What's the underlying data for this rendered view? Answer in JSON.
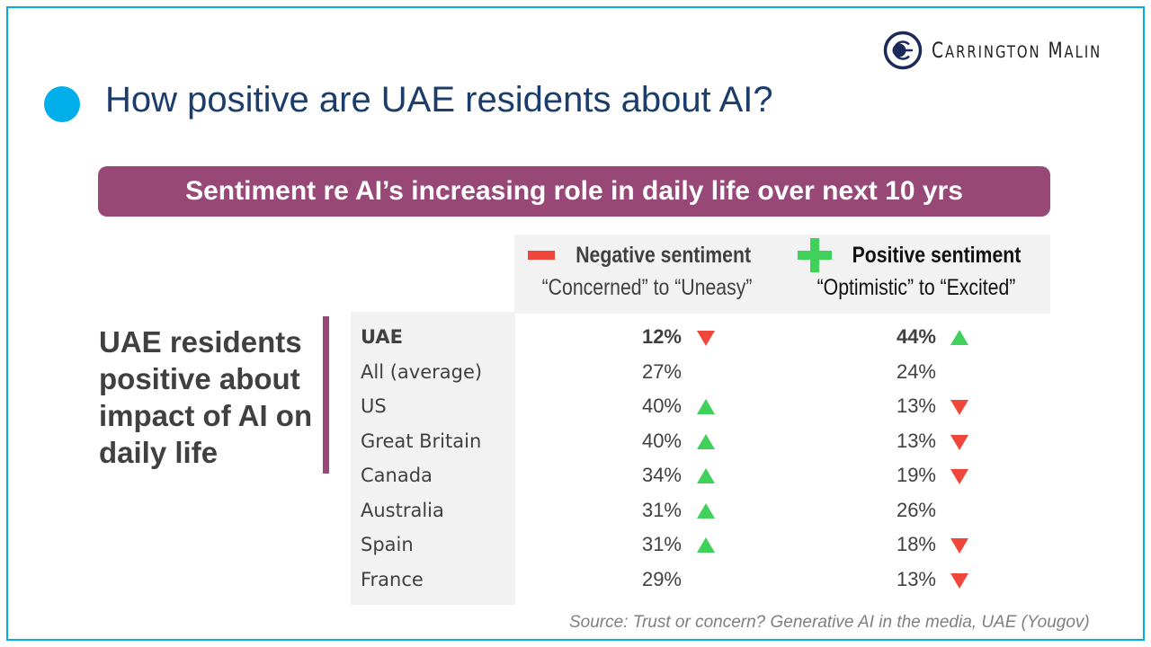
{
  "brand": {
    "name_parts": [
      {
        "cap": "C",
        "rest": "ARRINGTON"
      },
      {
        "cap": "M",
        "rest": "ALIN"
      }
    ],
    "name": "Carrington Malin",
    "color": "#1b2a5a"
  },
  "slide": {
    "title": "How positive are UAE residents about AI?",
    "banner": "Sentiment re AI’s increasing role in daily life over next 10 yrs",
    "side_note": "UAE residents positive about impact of AI on daily life",
    "source": "Source: Trust or concern? Generative AI in the media, UAE (Yougov)"
  },
  "colors": {
    "accent": "#00aeea",
    "banner": "#984876",
    "title": "#1b3d6b",
    "up": "#3fd15a",
    "down": "#f0473c"
  },
  "table": {
    "columns": [
      {
        "title": "Negative sentiment",
        "subtitle": "“Concerned” to “Uneasy”",
        "icon": "minus-icon"
      },
      {
        "title": "Positive sentiment",
        "subtitle": "“Optimistic” to “Excited”",
        "icon": "plus-icon"
      }
    ],
    "rows": [
      {
        "country": "UAE",
        "negative": "12%",
        "negative_trend": "down",
        "positive": "44%",
        "positive_trend": "up",
        "bold": true
      },
      {
        "country": "All (average)",
        "negative": "27%",
        "negative_trend": "none",
        "positive": "24%",
        "positive_trend": "none"
      },
      {
        "country": "US",
        "negative": "40%",
        "negative_trend": "up",
        "positive": "13%",
        "positive_trend": "down"
      },
      {
        "country": "Great Britain",
        "negative": "40%",
        "negative_trend": "up",
        "positive": "13%",
        "positive_trend": "down"
      },
      {
        "country": "Canada",
        "negative": "34%",
        "negative_trend": "up",
        "positive": "19%",
        "positive_trend": "down"
      },
      {
        "country": "Australia",
        "negative": "31%",
        "negative_trend": "up",
        "positive": "26%",
        "positive_trend": "none"
      },
      {
        "country": "Spain",
        "negative": "31%",
        "negative_trend": "up",
        "positive": "18%",
        "positive_trend": "down"
      },
      {
        "country": "France",
        "negative": "29%",
        "negative_trend": "none",
        "positive": "13%",
        "positive_trend": "down"
      }
    ]
  }
}
